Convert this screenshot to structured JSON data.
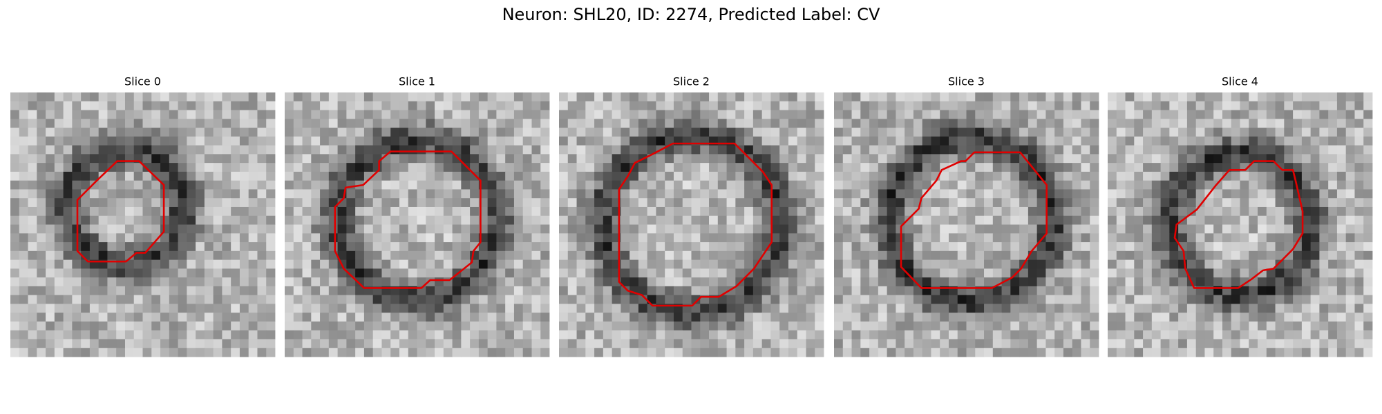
{
  "figure": {
    "title": "Neuron: SHL20, ID: 2274, Predicted Label: CV",
    "panels": [
      {
        "title": "Slice 0"
      },
      {
        "title": "Slice 1"
      },
      {
        "title": "Slice 2"
      },
      {
        "title": "Slice 3"
      },
      {
        "title": "Slice 4"
      }
    ]
  }
}
